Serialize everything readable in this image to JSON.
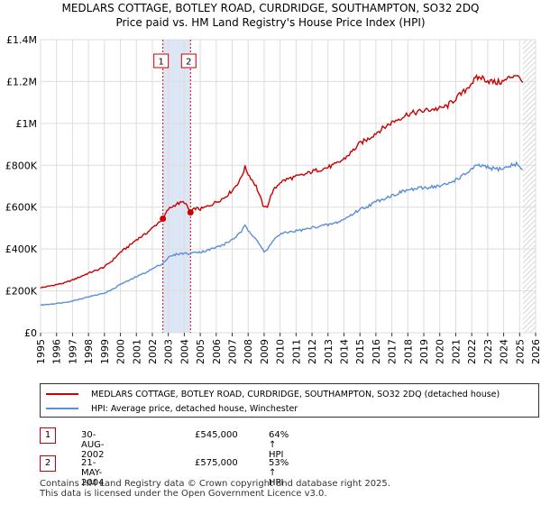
{
  "chart_data": {
    "type": "line",
    "title": "MEDLARS COTTAGE, BOTLEY ROAD, CURDRIDGE, SOUTHAMPTON, SO32 2DQ",
    "subtitle": "Price paid vs. HM Land Registry's House Price Index (HPI)",
    "ylim": [
      0,
      1400000
    ],
    "xlim": [
      1995,
      2026
    ],
    "y_ticks": [
      {
        "value": 0,
        "label": "£0"
      },
      {
        "value": 200000,
        "label": "£200K"
      },
      {
        "value": 400000,
        "label": "£400K"
      },
      {
        "value": 600000,
        "label": "£600K"
      },
      {
        "value": 800000,
        "label": "£800K"
      },
      {
        "value": 1000000,
        "label": "£1M"
      },
      {
        "value": 1200000,
        "label": "£1.2M"
      },
      {
        "value": 1400000,
        "label": "£1.4M"
      }
    ],
    "x_ticks": [
      "1995",
      "1996",
      "1997",
      "1998",
      "1999",
      "2000",
      "2001",
      "2002",
      "2003",
      "2004",
      "2005",
      "2006",
      "2007",
      "2008",
      "2009",
      "2010",
      "2011",
      "2012",
      "2013",
      "2014",
      "2015",
      "2016",
      "2017",
      "2018",
      "2019",
      "2020",
      "2021",
      "2022",
      "2023",
      "2024",
      "2025",
      "2026"
    ],
    "grid": true,
    "data_end_year": 2025.2,
    "series": [
      {
        "name": "MEDLARS COTTAGE, BOTLEY ROAD, CURDRIDGE, SOUTHAMPTON, SO32 2DQ (detached house)",
        "color": "#cc0000",
        "x": [
          1995.0,
          1995.5,
          1996.0,
          1996.5,
          1997.0,
          1997.5,
          1998.0,
          1998.5,
          1999.0,
          1999.5,
          2000.0,
          2000.5,
          2001.0,
          2001.5,
          2002.0,
          2002.66,
          2003.0,
          2003.5,
          2004.0,
          2004.39,
          2004.7,
          2005.0,
          2005.5,
          2006.0,
          2006.5,
          2007.0,
          2007.5,
          2007.8,
          2008.0,
          2008.5,
          2009.0,
          2009.2,
          2009.5,
          2010.0,
          2010.5,
          2011.0,
          2011.5,
          2012.0,
          2012.5,
          2013.0,
          2013.5,
          2014.0,
          2014.5,
          2015.0,
          2015.5,
          2016.0,
          2016.5,
          2017.0,
          2017.5,
          2018.0,
          2018.5,
          2019.0,
          2019.5,
          2020.0,
          2020.5,
          2021.0,
          2021.5,
          2022.0,
          2022.3,
          2022.6,
          2023.0,
          2023.5,
          2024.0,
          2024.5,
          2024.8,
          2025.0,
          2025.2
        ],
        "y": [
          215000,
          222000,
          230000,
          238000,
          252000,
          268000,
          285000,
          298000,
          315000,
          345000,
          385000,
          412000,
          445000,
          468000,
          500000,
          545000,
          590000,
          615000,
          625000,
          575000,
          595000,
          590000,
          605000,
          625000,
          645000,
          680000,
          730000,
          790000,
          760000,
          700000,
          595000,
          605000,
          670000,
          720000,
          735000,
          745000,
          755000,
          770000,
          780000,
          790000,
          805000,
          830000,
          865000,
          905000,
          925000,
          955000,
          980000,
          1005000,
          1025000,
          1045000,
          1052000,
          1060000,
          1068000,
          1070000,
          1085000,
          1120000,
          1150000,
          1195000,
          1215000,
          1220000,
          1205000,
          1195000,
          1200000,
          1225000,
          1235000,
          1210000,
          1195000
        ]
      },
      {
        "name": "HPI: Average price, detached house, Winchester",
        "color": "#5b8ed6",
        "x": [
          1995.0,
          1995.5,
          1996.0,
          1996.5,
          1997.0,
          1997.5,
          1998.0,
          1998.5,
          1999.0,
          1999.5,
          2000.0,
          2000.5,
          2001.0,
          2001.5,
          2002.0,
          2002.66,
          2003.0,
          2003.5,
          2004.0,
          2004.39,
          2004.7,
          2005.0,
          2005.5,
          2006.0,
          2006.5,
          2007.0,
          2007.5,
          2007.8,
          2008.0,
          2008.5,
          2009.0,
          2009.2,
          2009.5,
          2010.0,
          2010.5,
          2011.0,
          2011.5,
          2012.0,
          2012.5,
          2013.0,
          2013.5,
          2014.0,
          2014.5,
          2015.0,
          2015.5,
          2016.0,
          2016.5,
          2017.0,
          2017.5,
          2018.0,
          2018.5,
          2019.0,
          2019.5,
          2020.0,
          2020.5,
          2021.0,
          2021.5,
          2022.0,
          2022.3,
          2022.6,
          2023.0,
          2023.5,
          2024.0,
          2024.5,
          2024.8,
          2025.0,
          2025.2
        ],
        "y": [
          132000,
          136000,
          140000,
          145000,
          152000,
          162000,
          172000,
          180000,
          190000,
          207000,
          232000,
          248000,
          268000,
          285000,
          305000,
          332000,
          360000,
          375000,
          380000,
          376000,
          388000,
          385000,
          395000,
          408000,
          422000,
          445000,
          475000,
          510000,
          490000,
          450000,
          385000,
          395000,
          438000,
          470000,
          480000,
          487000,
          492000,
          502000,
          510000,
          515000,
          525000,
          542000,
          565000,
          590000,
          605000,
          625000,
          642000,
          655000,
          670000,
          682000,
          687000,
          692000,
          698000,
          700000,
          710000,
          732000,
          752000,
          782000,
          795000,
          798000,
          788000,
          782000,
          785000,
          800000,
          808000,
          790000,
          780000
        ]
      }
    ],
    "annotations": [
      {
        "label": "1",
        "x": 2002.66,
        "y": 545000
      },
      {
        "label": "2",
        "x": 2004.39,
        "y": 575000
      }
    ],
    "highlight_band": [
      2002.66,
      2004.39
    ]
  },
  "legend": {
    "property_label": "MEDLARS COTTAGE, BOTLEY ROAD, CURDRIDGE, SOUTHAMPTON, SO32 2DQ (detached house)",
    "hpi_label": "HPI: Average price, detached house, Winchester"
  },
  "sales": [
    {
      "num": "1",
      "date": "30-AUG-2002",
      "price": "£545,000",
      "hpi": "64% ↑ HPI"
    },
    {
      "num": "2",
      "date": "21-MAY-2004",
      "price": "£575,000",
      "hpi": "53% ↑ HPI"
    }
  ],
  "footer": {
    "line1": "Contains HM Land Registry data © Crown copyright and database right 2025.",
    "line2": "This data is licensed under the Open Government Licence v3.0."
  },
  "colors": {
    "property": "#cc0000",
    "hpi": "#5b8ed6",
    "grid": "#dddddd",
    "band": "#dde6f5"
  }
}
